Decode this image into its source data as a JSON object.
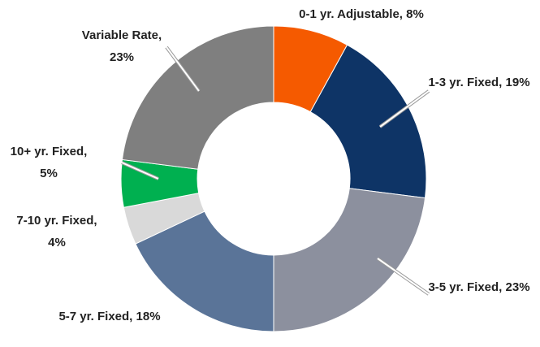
{
  "chart_data": {
    "type": "donut",
    "categories": [
      "0-1 yr. Adjustable,",
      "1-3 yr. Fixed,",
      "3-5 yr. Fixed,",
      "5-7 yr. Fixed,",
      "7-10 yr. Fixed,",
      "10+ yr. Fixed,",
      "Variable Rate,"
    ],
    "values": [
      8,
      19,
      23,
      18,
      4,
      5,
      23
    ],
    "value_labels": [
      "8%",
      "19%",
      "23%",
      "18%",
      "4%",
      "5%",
      "23%"
    ],
    "colors": [
      "#f55a00",
      "#0e3466",
      "#8c909e",
      "#5a7498",
      "#d9d9d9",
      "#00b050",
      "#7f7f7f"
    ]
  }
}
